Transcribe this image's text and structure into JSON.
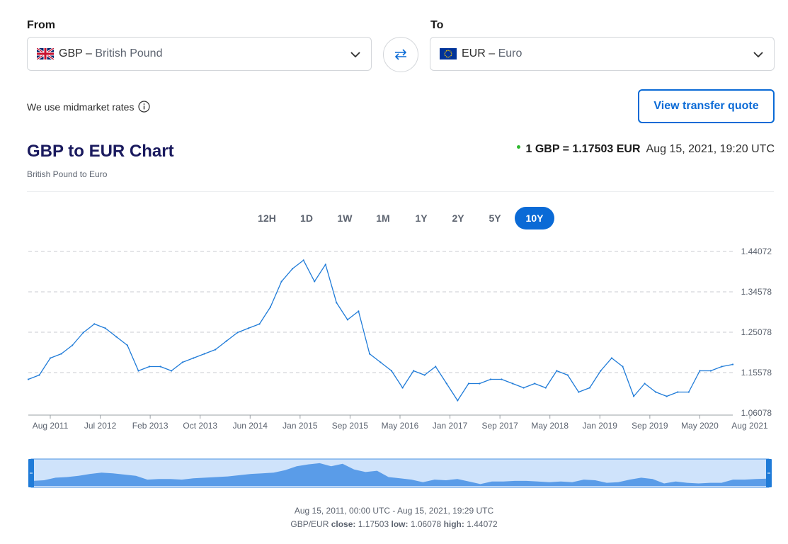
{
  "from": {
    "label": "From",
    "code": "GBP",
    "name": "British Pound",
    "separator": "–",
    "flag_icon": "uk-flag-icon"
  },
  "to": {
    "label": "To",
    "code": "EUR",
    "name": "Euro",
    "separator": "–",
    "flag_icon": "eu-flag-icon"
  },
  "midmarket_note": "We use midmarket rates",
  "quote_button": "View transfer quote",
  "chart_title": "GBP to EUR Chart",
  "chart_subtitle": "British Pound to Euro",
  "rate_summary": {
    "text": "1 GBP = 1.17503 EUR",
    "timestamp": "Aug 15, 2021, 19:20 UTC",
    "status_color": "#2eb82e"
  },
  "tabs": [
    {
      "label": "12H",
      "active": false
    },
    {
      "label": "1D",
      "active": false
    },
    {
      "label": "1W",
      "active": false
    },
    {
      "label": "1M",
      "active": false
    },
    {
      "label": "1Y",
      "active": false
    },
    {
      "label": "2Y",
      "active": false
    },
    {
      "label": "5Y",
      "active": false
    },
    {
      "label": "10Y",
      "active": true
    }
  ],
  "footer": {
    "range": "Aug 15, 2011, 00:00 UTC - Aug 15, 2021, 19:29 UTC",
    "pair": "GBP/EUR",
    "close_label": "close:",
    "close": "1.17503",
    "low_label": "low:",
    "low": "1.06078",
    "high_label": "high:",
    "high": "1.44072"
  },
  "colors": {
    "accent": "#0a6ad6",
    "line": "#1f7bd8",
    "navigator_fill": "#5a9ce8",
    "navigator_bg": "#cfe3fb"
  },
  "chart_data": {
    "type": "line",
    "x_tick_labels": [
      "Aug 2011",
      "Jul 2012",
      "Feb 2013",
      "Oct 2013",
      "Jun 2014",
      "Jan 2015",
      "Sep 2015",
      "May 2016",
      "Jan 2017",
      "Sep 2017",
      "May 2018",
      "Jan 2019",
      "Sep 2019",
      "May 2020",
      "Aug 2021"
    ],
    "y_tick_labels": [
      "1.44072",
      "1.34578",
      "1.25078",
      "1.15578",
      "1.06078"
    ],
    "ylim": [
      1.06078,
      1.44072
    ],
    "grid": true,
    "x": [
      "2011-08",
      "2011-10",
      "2011-12",
      "2012-02",
      "2012-04",
      "2012-06",
      "2012-07",
      "2012-09",
      "2012-11",
      "2013-01",
      "2013-02",
      "2013-04",
      "2013-06",
      "2013-08",
      "2013-10",
      "2013-12",
      "2014-02",
      "2014-04",
      "2014-06",
      "2014-08",
      "2014-10",
      "2014-12",
      "2015-01",
      "2015-03",
      "2015-05",
      "2015-07",
      "2015-09",
      "2015-11",
      "2016-01",
      "2016-03",
      "2016-05",
      "2016-06",
      "2016-07",
      "2016-09",
      "2016-11",
      "2017-01",
      "2017-03",
      "2017-05",
      "2017-07",
      "2017-09",
      "2017-11",
      "2018-01",
      "2018-03",
      "2018-05",
      "2018-07",
      "2018-09",
      "2018-11",
      "2019-01",
      "2019-03",
      "2019-05",
      "2019-07",
      "2019-09",
      "2019-11",
      "2020-01",
      "2020-03",
      "2020-04",
      "2020-05",
      "2020-07",
      "2020-09",
      "2020-11",
      "2021-01",
      "2021-03",
      "2021-05",
      "2021-07",
      "2021-08"
    ],
    "values": [
      1.14,
      1.15,
      1.19,
      1.2,
      1.22,
      1.25,
      1.27,
      1.26,
      1.24,
      1.22,
      1.16,
      1.17,
      1.17,
      1.16,
      1.18,
      1.19,
      1.2,
      1.21,
      1.23,
      1.25,
      1.26,
      1.27,
      1.31,
      1.37,
      1.4,
      1.42,
      1.37,
      1.41,
      1.32,
      1.28,
      1.3,
      1.2,
      1.18,
      1.16,
      1.12,
      1.16,
      1.15,
      1.17,
      1.13,
      1.09,
      1.13,
      1.13,
      1.14,
      1.14,
      1.13,
      1.12,
      1.13,
      1.12,
      1.16,
      1.15,
      1.11,
      1.12,
      1.16,
      1.19,
      1.17,
      1.1,
      1.13,
      1.11,
      1.1,
      1.11,
      1.11,
      1.16,
      1.16,
      1.17,
      1.175
    ],
    "navigator": true
  }
}
